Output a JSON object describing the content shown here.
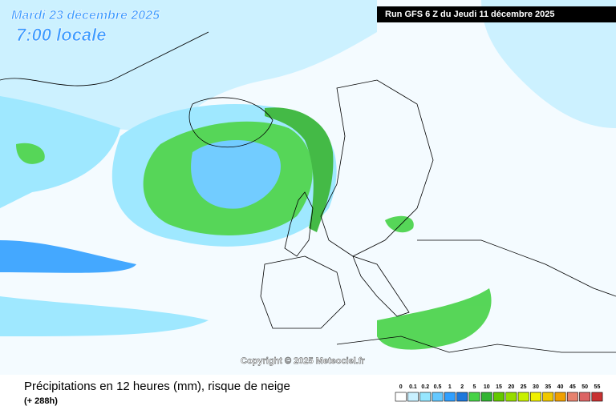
{
  "header": {
    "date": "Mardi 23 décembre 2025",
    "time": "7:00 locale",
    "run": "Run GFS 6 Z du Jeudi 11 décembre 2025"
  },
  "copyright": "Copyright © 2025 Meteociel.fr",
  "footer": {
    "title": "Précipitations en 12 heures (mm), risque de neige",
    "lead": "(+ 288h)"
  },
  "legend": {
    "items": [
      {
        "label": 0,
        "color": "#ffffff"
      },
      {
        "label": 0.1,
        "color": "#c8f0ff"
      },
      {
        "label": 0.2,
        "color": "#96e6ff"
      },
      {
        "label": 0.5,
        "color": "#64c8ff"
      },
      {
        "label": 1,
        "color": "#32a0ff"
      },
      {
        "label": 2,
        "color": "#1e78dc"
      },
      {
        "label": 5,
        "color": "#46d246"
      },
      {
        "label": 10,
        "color": "#32b432"
      },
      {
        "label": 15,
        "color": "#64c800"
      },
      {
        "label": 20,
        "color": "#96dc00"
      },
      {
        "label": 25,
        "color": "#c8f000"
      },
      {
        "label": 30,
        "color": "#f0f000"
      },
      {
        "label": 35,
        "color": "#f0c800"
      },
      {
        "label": 40,
        "color": "#f0a000"
      },
      {
        "label": 45,
        "color": "#e6826e"
      },
      {
        "label": 50,
        "color": "#dc6464"
      },
      {
        "label": 55,
        "color": "#c83232"
      }
    ]
  }
}
